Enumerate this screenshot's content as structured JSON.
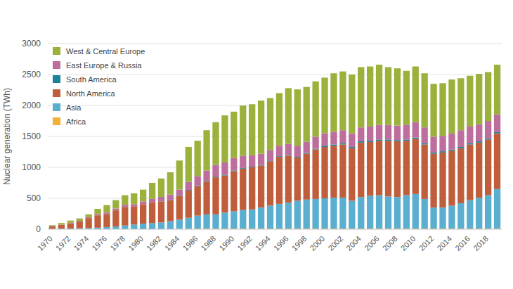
{
  "chart_data": {
    "type": "bar",
    "stacked": true,
    "grid": true,
    "legend": "upper left",
    "y_label": "Nuclear generation (TWh)",
    "ylim": [
      0,
      3000
    ],
    "yticks": [
      0,
      500,
      1000,
      1500,
      2000,
      2500,
      3000
    ],
    "categories": [
      "1970",
      null,
      "1972",
      null,
      "1974",
      null,
      "1976",
      null,
      "1978",
      null,
      "1980",
      null,
      "1982",
      null,
      "1984",
      null,
      "1986",
      null,
      "1988",
      null,
      "1990",
      null,
      "1992",
      null,
      "1994",
      null,
      "1996",
      null,
      "1998",
      null,
      "2000",
      null,
      "2002",
      null,
      "2004",
      null,
      "2006",
      null,
      "2008",
      null,
      "2010",
      null,
      "2012",
      null,
      "2014",
      null,
      "2016",
      null,
      "2018",
      null
    ],
    "series": [
      {
        "name": "Africa",
        "color": "#f2b134",
        "values": [
          0,
          0,
          0,
          0,
          0,
          0,
          0,
          0,
          0,
          0,
          0,
          0,
          0,
          0,
          5,
          5,
          10,
          10,
          10,
          10,
          10,
          10,
          10,
          10,
          10,
          10,
          10,
          10,
          10,
          10,
          10,
          10,
          10,
          10,
          10,
          10,
          10,
          10,
          10,
          10,
          10,
          10,
          10,
          10,
          10,
          10,
          10,
          10,
          10,
          10
        ]
      },
      {
        "name": "Asia",
        "color": "#5aaed0",
        "values": [
          5,
          10,
          12,
          15,
          20,
          25,
          35,
          45,
          60,
          75,
          90,
          100,
          110,
          130,
          150,
          180,
          210,
          230,
          230,
          260,
          280,
          300,
          310,
          340,
          370,
          400,
          420,
          450,
          470,
          480,
          490,
          500,
          500,
          450,
          510,
          530,
          540,
          520,
          510,
          540,
          560,
          480,
          340,
          340,
          370,
          410,
          460,
          500,
          540,
          640
        ]
      },
      {
        "name": "North America",
        "color": "#c05e3c",
        "values": [
          40,
          60,
          85,
          110,
          160,
          200,
          210,
          260,
          300,
          290,
          310,
          330,
          340,
          340,
          380,
          440,
          480,
          530,
          600,
          600,
          650,
          670,
          680,
          680,
          720,
          760,
          760,
          700,
          740,
          800,
          830,
          840,
          860,
          850,
          880,
          870,
          880,
          900,
          900,
          880,
          890,
          880,
          870,
          890,
          890,
          890,
          900,
          890,
          900,
          900
        ]
      },
      {
        "name": "South America",
        "color": "#1a8299",
        "values": [
          0,
          0,
          0,
          0,
          0,
          0,
          0,
          0,
          0,
          0,
          0,
          0,
          3,
          5,
          8,
          10,
          10,
          10,
          10,
          10,
          10,
          10,
          10,
          10,
          10,
          10,
          10,
          10,
          10,
          10,
          20,
          20,
          20,
          20,
          20,
          20,
          20,
          20,
          20,
          20,
          20,
          20,
          20,
          20,
          20,
          20,
          20,
          20,
          20,
          20
        ]
      },
      {
        "name": "East Europe & Russia",
        "color": "#bd6e9d",
        "values": [
          3,
          5,
          8,
          10,
          15,
          20,
          25,
          30,
          35,
          40,
          50,
          60,
          70,
          85,
          100,
          130,
          150,
          170,
          190,
          200,
          200,
          195,
          185,
          180,
          170,
          170,
          180,
          180,
          185,
          195,
          200,
          205,
          210,
          220,
          225,
          230,
          235,
          235,
          235,
          240,
          250,
          255,
          255,
          250,
          255,
          270,
          270,
          275,
          280,
          285
        ]
      },
      {
        "name": "West & Central Europe",
        "color": "#9ab13c",
        "values": [
          17,
          25,
          35,
          40,
          45,
          85,
          120,
          135,
          155,
          175,
          190,
          260,
          297,
          360,
          467,
          565,
          570,
          650,
          690,
          760,
          750,
          815,
          825,
          860,
          840,
          850,
          900,
          910,
          885,
          895,
          900,
          945,
          950,
          950,
          975,
          970,
          975,
          935,
          925,
          870,
          900,
          875,
          855,
          850,
          875,
          840,
          820,
          815,
          790,
          805
        ]
      }
    ]
  }
}
